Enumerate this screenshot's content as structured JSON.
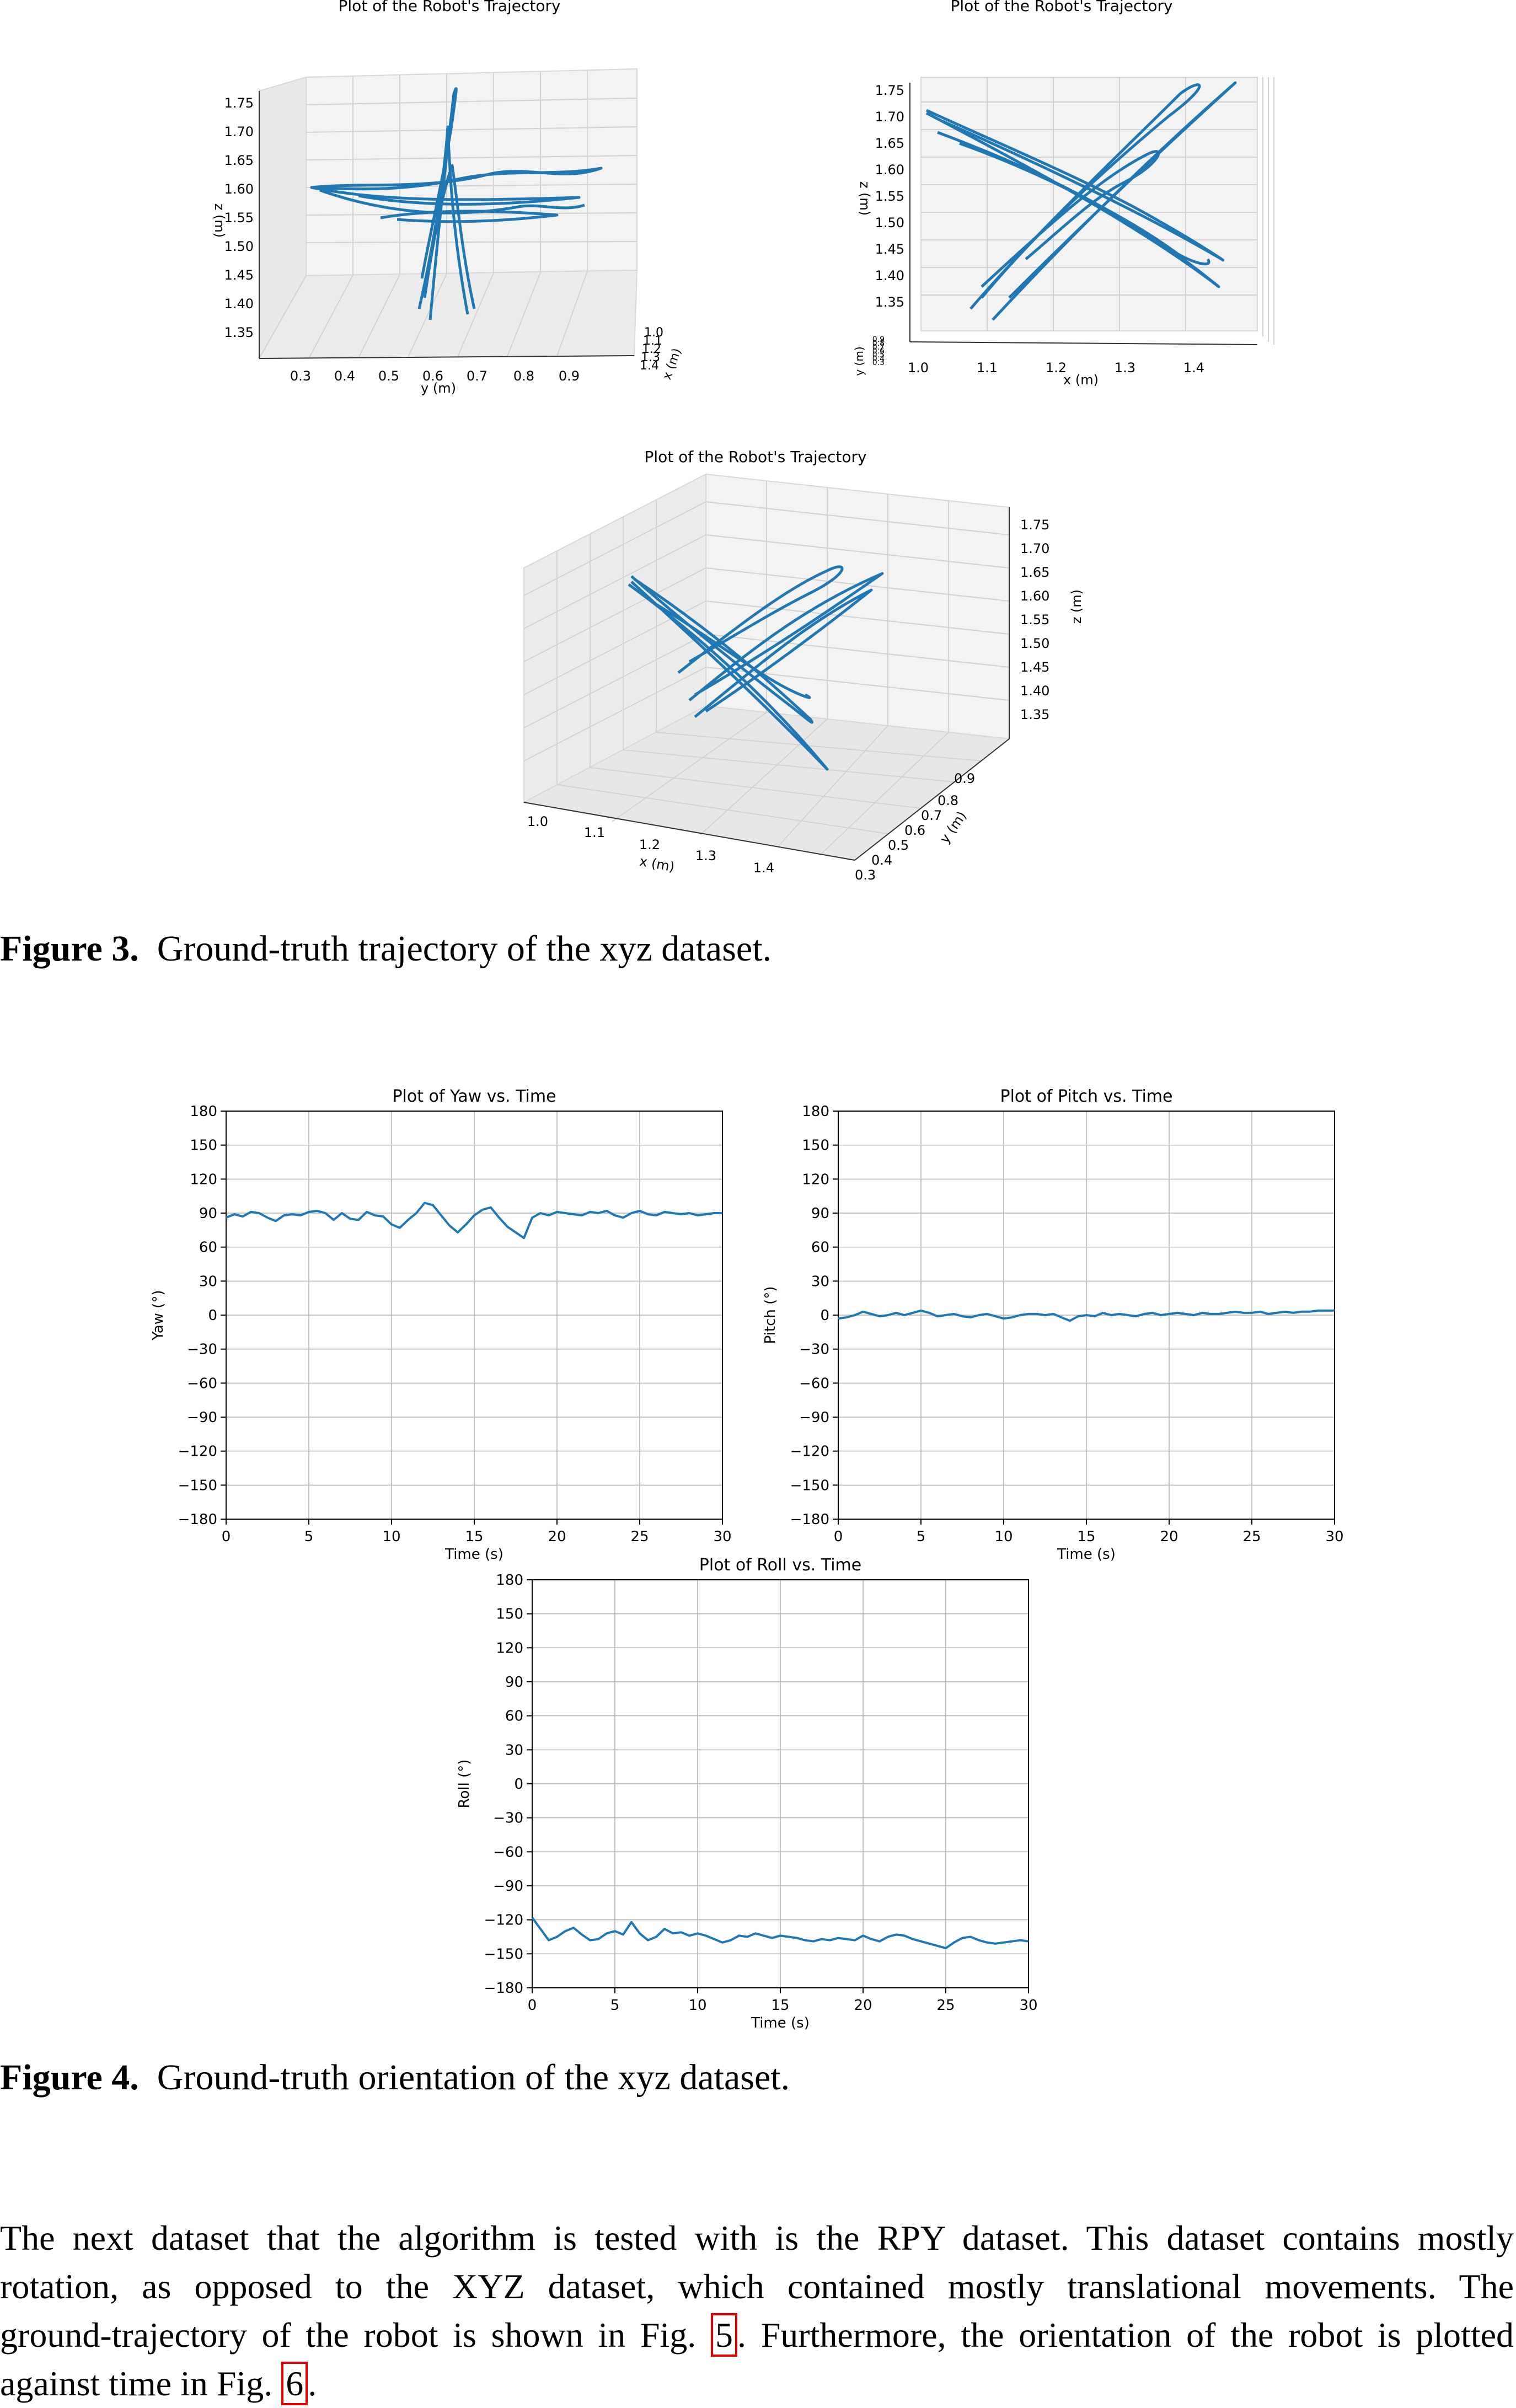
{
  "figure3": {
    "caption_label": "Figure 3.",
    "caption_text": "Ground-truth trajectory of the xyz dataset.",
    "plot1": {
      "title": "Plot of the Robot's Trajectory",
      "y_label": "y (m)",
      "z_label": "z (m)",
      "x_label": "x (m)",
      "y_ticks": [
        "0.3",
        "0.4",
        "0.5",
        "0.6",
        "0.7",
        "0.8",
        "0.9"
      ],
      "z_ticks": [
        "1.75",
        "1.70",
        "1.65",
        "1.60",
        "1.55",
        "1.50",
        "1.45",
        "1.40",
        "1.35"
      ],
      "x_ticks": [
        "1.0",
        "1.1",
        "1.2",
        "1.3",
        "1.4"
      ]
    },
    "plot2": {
      "title": "Plot of the Robot's Trajectory",
      "x_label": "x (m)",
      "z_label": "z (m)",
      "y_label": "y (m)",
      "x_ticks": [
        "1.0",
        "1.1",
        "1.2",
        "1.3",
        "1.4"
      ],
      "z_ticks": [
        "1.75",
        "1.70",
        "1.65",
        "1.60",
        "1.55",
        "1.50",
        "1.45",
        "1.40",
        "1.35"
      ],
      "y_ticks": [
        "0.9",
        "0.8",
        "0.7",
        "0.6",
        "0.5",
        "0.4",
        "0.3"
      ]
    },
    "plot3": {
      "title": "Plot of the Robot's Trajectory",
      "x_label": "x (m)",
      "y_label": "y (m)",
      "z_label": "z (m)",
      "x_ticks": [
        "1.0",
        "1.1",
        "1.2",
        "1.3",
        "1.4"
      ],
      "y_ticks": [
        "0.3",
        "0.4",
        "0.5",
        "0.6",
        "0.7",
        "0.8",
        "0.9"
      ],
      "z_ticks": [
        "1.75",
        "1.70",
        "1.65",
        "1.60",
        "1.55",
        "1.50",
        "1.45",
        "1.40",
        "1.35"
      ]
    }
  },
  "figure4": {
    "caption_label": "Figure 4.",
    "caption_text": "Ground-truth orientation of the xyz dataset."
  },
  "paragraph": {
    "line1": "The next dataset that the algorithm is tested with is the RPY dataset. This dataset contains mostly",
    "line2": "rotation, as opposed to the XYZ dataset, which contained mostly translational movements. The",
    "line3_before": "ground-trajectory of the robot is shown in Fig.",
    "fig5_ref": "5",
    "line3_after": ". Furthermore, the orientation of the robot is plotted",
    "line4_before": "against time in Fig.",
    "fig6_ref": "6",
    "line4_after": "."
  },
  "colors": {
    "series": "#1f77b4",
    "grid": "#b0b0b0",
    "ref_box": "#e00000"
  },
  "chart_data": [
    {
      "type": "line",
      "title": "Plot of Yaw vs. Time",
      "xlabel": "Time (s)",
      "ylabel": "Yaw (°)",
      "xlim": [
        0,
        30
      ],
      "ylim": [
        -180,
        180
      ],
      "xticks": [
        0,
        5,
        10,
        15,
        20,
        25,
        30
      ],
      "yticks": [
        180,
        150,
        120,
        90,
        60,
        30,
        0,
        -30,
        -60,
        -90,
        -120,
        -150,
        -180
      ],
      "grid": true,
      "x": [
        0,
        0.5,
        1,
        1.5,
        2,
        2.5,
        3,
        3.5,
        4,
        4.5,
        5,
        5.5,
        6,
        6.5,
        7,
        7.5,
        8,
        8.5,
        9,
        9.5,
        10,
        10.5,
        11,
        11.5,
        12,
        12.5,
        13,
        13.5,
        14,
        14.5,
        15,
        15.5,
        16,
        16.5,
        17,
        17.5,
        18,
        18.5,
        19,
        19.5,
        20,
        20.5,
        21,
        21.5,
        22,
        22.5,
        23,
        23.5,
        24,
        24.5,
        25,
        25.5,
        26,
        26.5,
        27,
        27.5,
        28,
        28.5,
        29,
        29.5,
        30
      ],
      "values": [
        86,
        89,
        87,
        91,
        90,
        86,
        83,
        88,
        89,
        88,
        91,
        92,
        90,
        84,
        90,
        85,
        84,
        91,
        88,
        87,
        80,
        77,
        84,
        90,
        99,
        97,
        88,
        79,
        73,
        80,
        88,
        93,
        95,
        86,
        78,
        73,
        68,
        86,
        90,
        88,
        91,
        90,
        89,
        88,
        91,
        90,
        92,
        88,
        86,
        90,
        92,
        89,
        88,
        91,
        90,
        89,
        90,
        88,
        89,
        90,
        90
      ]
    },
    {
      "type": "line",
      "title": "Plot of Pitch vs. Time",
      "xlabel": "Time (s)",
      "ylabel": "Pitch (°)",
      "xlim": [
        0,
        30
      ],
      "ylim": [
        -180,
        180
      ],
      "xticks": [
        0,
        5,
        10,
        15,
        20,
        25,
        30
      ],
      "yticks": [
        180,
        150,
        120,
        90,
        60,
        30,
        0,
        -30,
        -60,
        -90,
        -120,
        -150,
        -180
      ],
      "grid": true,
      "x": [
        0,
        0.5,
        1,
        1.5,
        2,
        2.5,
        3,
        3.5,
        4,
        4.5,
        5,
        5.5,
        6,
        6.5,
        7,
        7.5,
        8,
        8.5,
        9,
        9.5,
        10,
        10.5,
        11,
        11.5,
        12,
        12.5,
        13,
        13.5,
        14,
        14.5,
        15,
        15.5,
        16,
        16.5,
        17,
        17.5,
        18,
        18.5,
        19,
        19.5,
        20,
        20.5,
        21,
        21.5,
        22,
        22.5,
        23,
        23.5,
        24,
        24.5,
        25,
        25.5,
        26,
        26.5,
        27,
        27.5,
        28,
        28.5,
        29,
        29.5,
        30
      ],
      "values": [
        -3,
        -2,
        0,
        3,
        1,
        -1,
        0,
        2,
        0,
        2,
        4,
        2,
        -1,
        0,
        1,
        -1,
        -2,
        0,
        1,
        -1,
        -3,
        -2,
        0,
        1,
        1,
        0,
        1,
        -2,
        -5,
        -1,
        0,
        -1,
        2,
        0,
        1,
        0,
        -1,
        1,
        2,
        0,
        1,
        2,
        1,
        0,
        2,
        1,
        1,
        2,
        3,
        2,
        2,
        3,
        1,
        2,
        3,
        2,
        3,
        3,
        4,
        4,
        4
      ]
    },
    {
      "type": "line",
      "title": "Plot of Roll vs. Time",
      "xlabel": "Time (s)",
      "ylabel": "Roll (°)",
      "xlim": [
        0,
        30
      ],
      "ylim": [
        -180,
        180
      ],
      "xticks": [
        0,
        5,
        10,
        15,
        20,
        25,
        30
      ],
      "yticks": [
        180,
        150,
        120,
        90,
        60,
        30,
        0,
        -30,
        -60,
        -90,
        -120,
        -150,
        -180
      ],
      "grid": true,
      "x": [
        0,
        0.5,
        1,
        1.5,
        2,
        2.5,
        3,
        3.5,
        4,
        4.5,
        5,
        5.5,
        6,
        6.5,
        7,
        7.5,
        8,
        8.5,
        9,
        9.5,
        10,
        10.5,
        11,
        11.5,
        12,
        12.5,
        13,
        13.5,
        14,
        14.5,
        15,
        15.5,
        16,
        16.5,
        17,
        17.5,
        18,
        18.5,
        19,
        19.5,
        20,
        20.5,
        21,
        21.5,
        22,
        22.5,
        23,
        23.5,
        24,
        24.5,
        25,
        25.5,
        26,
        26.5,
        27,
        27.5,
        28,
        28.5,
        29,
        29.5,
        30
      ],
      "values": [
        -118,
        -128,
        -138,
        -135,
        -130,
        -127,
        -133,
        -138,
        -137,
        -132,
        -130,
        -133,
        -122,
        -132,
        -138,
        -135,
        -128,
        -132,
        -131,
        -134,
        -132,
        -134,
        -137,
        -140,
        -138,
        -134,
        -135,
        -132,
        -134,
        -136,
        -134,
        -135,
        -136,
        -138,
        -139,
        -137,
        -138,
        -136,
        -137,
        -138,
        -134,
        -137,
        -139,
        -135,
        -133,
        -134,
        -137,
        -139,
        -141,
        -143,
        -145,
        -140,
        -136,
        -135,
        -138,
        -140,
        -141,
        -140,
        -139,
        -138,
        -139
      ]
    }
  ]
}
